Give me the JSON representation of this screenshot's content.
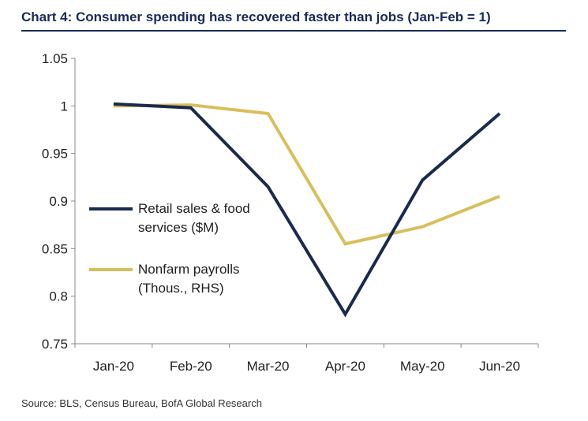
{
  "title": "Chart 4: Consumer spending has recovered faster than jobs (Jan-Feb = 1)",
  "source": "Source: BLS, Census Bureau, BofA Global Research",
  "chart_data": {
    "type": "line",
    "categories": [
      "Jan-20",
      "Feb-20",
      "Mar-20",
      "Apr-20",
      "May-20",
      "Jun-20"
    ],
    "ylim": [
      0.75,
      1.05
    ],
    "yticks": [
      "1.05",
      "1",
      "0.95",
      "0.9",
      "0.85",
      "0.8",
      "0.75"
    ],
    "grid": false,
    "legend_position": "left",
    "series": [
      {
        "name_lines": [
          "Retail sales & food",
          "services ($M)"
        ],
        "color": "#1a2a4f",
        "values": [
          1.002,
          0.998,
          0.915,
          0.781,
          0.922,
          0.992
        ]
      },
      {
        "name_lines": [
          "Nonfarm payrolls",
          "(Thous., RHS)"
        ],
        "color": "#d8bf5c",
        "values": [
          1.0,
          1.001,
          0.992,
          0.855,
          0.873,
          0.905
        ]
      }
    ]
  }
}
